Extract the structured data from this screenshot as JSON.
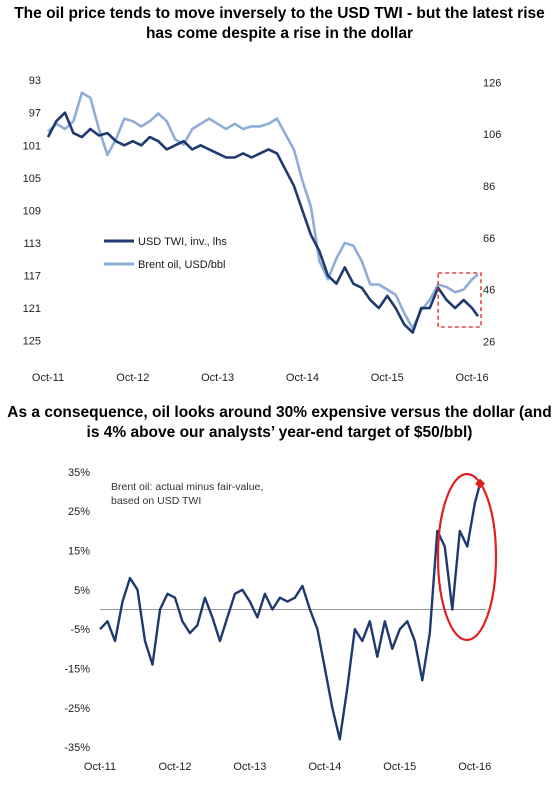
{
  "titles": {
    "top": "The oil price tends to move inversely to the USD TWI - but the latest rise has come despite a rise in the dollar",
    "bottom": "As a consequence, oil looks around 30% expensive versus the dollar (and is 4% above our analysts’ year-end target of $50/bbl)"
  },
  "colors": {
    "usd": "#1f3a6e",
    "brent": "#8eaed8",
    "highlight": "#e02020"
  },
  "chart_data": [
    {
      "type": "line",
      "title": "The oil price tends to move inversely to the USD TWI - but the latest rise has come despite a rise in the dollar",
      "x_ticks": [
        "Oct-11",
        "Oct-12",
        "Oct-13",
        "Oct-14",
        "Oct-15",
        "Oct-16"
      ],
      "y_left_ticks": [
        "93",
        "97",
        "101",
        "105",
        "109",
        "113",
        "117",
        "121",
        "125"
      ],
      "y_left_inverted": true,
      "ylim_left": [
        92,
        127
      ],
      "y_right_ticks": [
        "126",
        "106",
        "86",
        "66",
        "46",
        "26"
      ],
      "ylim_right": [
        20,
        130
      ],
      "legend_position": "middle-left",
      "series": [
        {
          "name": "USD TWI, inv., lhs",
          "axis": "left",
          "x": [
            2011.75,
            2011.85,
            2011.95,
            2012.05,
            2012.15,
            2012.25,
            2012.35,
            2012.45,
            2012.55,
            2012.65,
            2012.75,
            2012.85,
            2012.95,
            2013.05,
            2013.15,
            2013.25,
            2013.35,
            2013.45,
            2013.55,
            2013.65,
            2013.75,
            2013.85,
            2013.95,
            2014.05,
            2014.15,
            2014.25,
            2014.35,
            2014.45,
            2014.55,
            2014.65,
            2014.75,
            2014.85,
            2014.95,
            2015.05,
            2015.15,
            2015.25,
            2015.35,
            2015.45,
            2015.55,
            2015.65,
            2015.75,
            2015.85,
            2015.95,
            2016.05,
            2016.15,
            2016.25,
            2016.35,
            2016.45,
            2016.55,
            2016.65,
            2016.75,
            2016.82
          ],
          "values": [
            100.0,
            98.0,
            97.0,
            99.5,
            100.0,
            99.0,
            99.8,
            99.5,
            100.5,
            101.0,
            100.5,
            101.0,
            100.0,
            100.5,
            101.5,
            101.0,
            100.5,
            101.5,
            101.0,
            101.5,
            102.0,
            102.5,
            102.5,
            102.0,
            102.5,
            102.0,
            101.5,
            102.0,
            104.0,
            106.0,
            109.0,
            112.0,
            114.0,
            117.0,
            118.0,
            116.0,
            118.0,
            118.5,
            120.0,
            121.0,
            119.5,
            121.0,
            123.0,
            124.0,
            121.0,
            121.0,
            118.5,
            120.0,
            121.0,
            120.0,
            121.0,
            122.0
          ]
        },
        {
          "name": "Brent oil, USD/bbl",
          "axis": "right",
          "x": [
            2011.75,
            2011.85,
            2011.95,
            2012.05,
            2012.15,
            2012.25,
            2012.35,
            2012.45,
            2012.55,
            2012.65,
            2012.75,
            2012.85,
            2012.95,
            2013.05,
            2013.15,
            2013.25,
            2013.35,
            2013.45,
            2013.55,
            2013.65,
            2013.75,
            2013.85,
            2013.95,
            2014.05,
            2014.15,
            2014.25,
            2014.35,
            2014.45,
            2014.55,
            2014.65,
            2014.75,
            2014.85,
            2014.95,
            2015.05,
            2015.15,
            2015.25,
            2015.35,
            2015.45,
            2015.55,
            2015.65,
            2015.75,
            2015.85,
            2015.95,
            2016.05,
            2016.15,
            2016.25,
            2016.35,
            2016.45,
            2016.55,
            2016.65,
            2016.75,
            2016.82
          ],
          "values": [
            107.0,
            110.0,
            108.0,
            111.0,
            122.0,
            120.0,
            108.0,
            98.0,
            104.0,
            112.0,
            111.0,
            109.0,
            111.0,
            114.0,
            111.0,
            104.0,
            102.0,
            108.0,
            110.0,
            112.0,
            110.0,
            108.0,
            110.0,
            108.0,
            109.0,
            109.0,
            110.0,
            112.0,
            106.0,
            100.0,
            88.0,
            78.0,
            57.0,
            50.0,
            58.0,
            64.0,
            63.0,
            57.0,
            48.0,
            48.0,
            46.0,
            44.0,
            37.0,
            31.0,
            38.0,
            42.0,
            48.0,
            47.0,
            45.0,
            46.0,
            50.0,
            52.0
          ]
        }
      ]
    },
    {
      "type": "line",
      "title": "As a consequence, oil looks around 30% expensive versus the dollar (and is 4% above our analysts’ year-end target of $50/bbl)",
      "annotation": "Brent oil: actual minus fair-value, based on USD TWI",
      "x_ticks": [
        "Oct-11",
        "Oct-12",
        "Oct-13",
        "Oct-14",
        "Oct-15",
        "Oct-16"
      ],
      "y_ticks": [
        "35%",
        "25%",
        "15%",
        "5%",
        "-5%",
        "-15%",
        "-25%",
        "-35%"
      ],
      "ylim": [
        -37,
        37
      ],
      "series": [
        {
          "name": "Brent oil: actual minus fair-value, based on USD TWI",
          "x": [
            2011.75,
            2011.85,
            2011.95,
            2012.05,
            2012.15,
            2012.25,
            2012.35,
            2012.45,
            2012.55,
            2012.65,
            2012.75,
            2012.85,
            2012.95,
            2013.05,
            2013.15,
            2013.25,
            2013.35,
            2013.45,
            2013.55,
            2013.65,
            2013.75,
            2013.85,
            2013.95,
            2014.05,
            2014.15,
            2014.25,
            2014.35,
            2014.45,
            2014.55,
            2014.65,
            2014.75,
            2014.85,
            2014.95,
            2015.05,
            2015.15,
            2015.25,
            2015.35,
            2015.45,
            2015.55,
            2015.65,
            2015.75,
            2015.85,
            2015.95,
            2016.05,
            2016.15,
            2016.25,
            2016.35,
            2016.45,
            2016.55,
            2016.65,
            2016.75,
            2016.82
          ],
          "values": [
            -5,
            -3,
            -8,
            2,
            8,
            5,
            -8,
            -14,
            0,
            4,
            3,
            -3,
            -6,
            -4,
            3,
            -2,
            -8,
            -2,
            4,
            5,
            2,
            -2,
            4,
            0,
            3,
            2,
            3,
            6,
            0,
            -5,
            -15,
            -25,
            -33,
            -20,
            -5,
            -8,
            -3,
            -12,
            -3,
            -10,
            -5,
            -3,
            -8,
            -18,
            -6,
            20,
            16,
            0,
            20,
            16,
            27,
            32
          ]
        }
      ]
    }
  ]
}
